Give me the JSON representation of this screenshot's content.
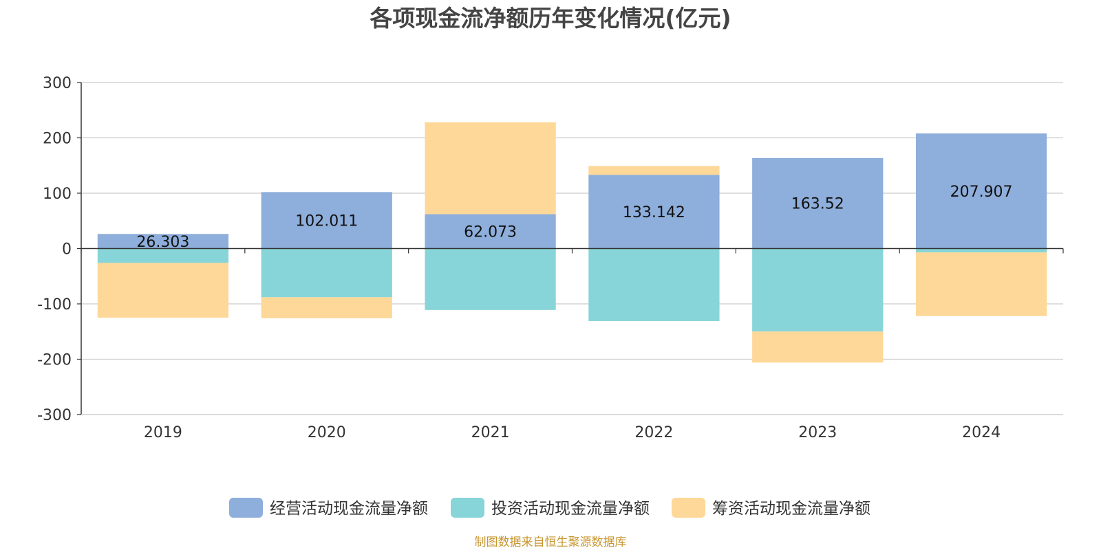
{
  "chart_data": {
    "type": "bar",
    "stacked": true,
    "title": "各项现金流净额历年变化情况(亿元)",
    "categories": [
      "2019",
      "2020",
      "2021",
      "2022",
      "2023",
      "2024"
    ],
    "ylim": [
      -300,
      300
    ],
    "yticks": [
      300,
      200,
      100,
      0,
      -100,
      -200,
      -300
    ],
    "grid": true,
    "legend_position": "bottom",
    "series": [
      {
        "name": "经营活动现金流量净额",
        "color": "#8eaedb",
        "values": [
          26.303,
          102.011,
          62.073,
          133.142,
          163.52,
          207.907
        ],
        "labels": [
          "26.303",
          "102.011",
          "62.073",
          "133.142",
          "163.52",
          "207.907"
        ]
      },
      {
        "name": "投资活动现金流量净额",
        "color": "#87d5d8",
        "values": [
          -26,
          -88,
          -111,
          -131,
          -150,
          -7
        ]
      },
      {
        "name": "筹资活动现金流量净额",
        "color": "#fdd898",
        "values": [
          -99,
          -38,
          166,
          16,
          -56,
          -115
        ]
      }
    ]
  },
  "source": "制图数据来自恒生聚源数据库"
}
